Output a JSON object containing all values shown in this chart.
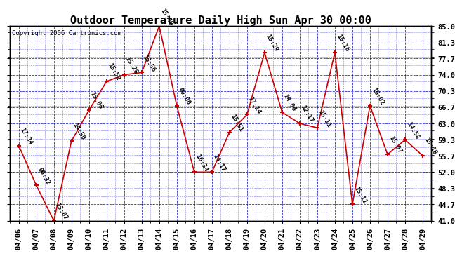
{
  "title": "Outdoor Temperature Daily High Sun Apr 30 00:00",
  "copyright": "Copyright 2006 Cantronics.com",
  "dates": [
    "04/06",
    "04/07",
    "04/08",
    "04/09",
    "04/10",
    "04/11",
    "04/12",
    "04/13",
    "04/14",
    "04/15",
    "04/16",
    "04/17",
    "04/18",
    "04/19",
    "04/20",
    "04/21",
    "04/22",
    "04/23",
    "04/24",
    "04/25",
    "04/26",
    "04/27",
    "04/28",
    "04/29"
  ],
  "values": [
    58.0,
    49.0,
    41.0,
    59.0,
    66.0,
    72.5,
    74.0,
    74.5,
    85.0,
    67.0,
    52.0,
    52.0,
    61.0,
    65.0,
    79.0,
    65.5,
    63.0,
    62.0,
    79.0,
    44.7,
    67.0,
    56.0,
    59.3,
    55.7
  ],
  "annotations": [
    "17:34",
    "00:32",
    "15:07",
    "14:50",
    "15:05",
    "15:52",
    "15:28",
    "15:56",
    "15:49",
    "00:00",
    "16:34",
    "14:17",
    "15:51",
    "17:14",
    "15:29",
    "14:06",
    "12:17",
    "15:11",
    "15:16",
    "15:11",
    "16:02",
    "15:07",
    "14:58",
    "15:18"
  ],
  "ylim": [
    41.0,
    85.0
  ],
  "yticks": [
    41.0,
    44.7,
    48.3,
    52.0,
    55.7,
    59.3,
    63.0,
    66.7,
    70.3,
    74.0,
    77.7,
    81.3,
    85.0
  ],
  "line_color": "#cc0000",
  "marker_color": "#cc0000",
  "grid_color": "#0000bb",
  "background_color": "#ffffff",
  "plot_bg_color": "#ffffff",
  "title_fontsize": 11,
  "annotation_fontsize": 6.5,
  "copyright_fontsize": 6.5,
  "tick_fontsize": 7.5,
  "xlabel_fontsize": 7.5
}
